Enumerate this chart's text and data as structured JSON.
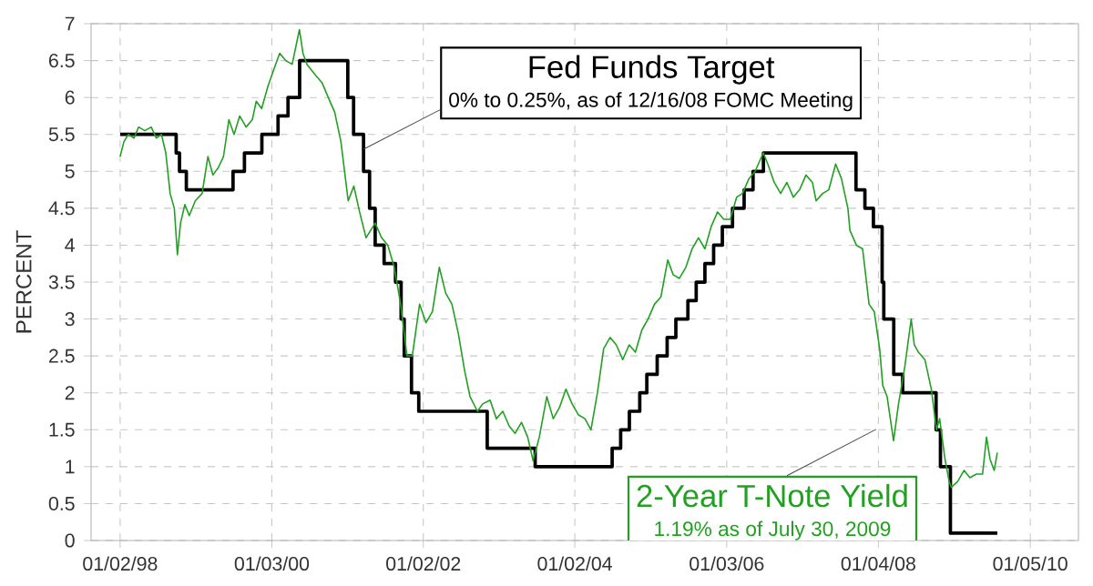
{
  "chart_data": {
    "type": "line",
    "ylabel": "PERCENT",
    "grid": true,
    "legend": false,
    "xlim": [
      "1997-08-15",
      "2010-08-25"
    ],
    "xticks": [
      {
        "value": "1998-01-02",
        "label": "01/02/98"
      },
      {
        "value": "2000-01-03",
        "label": "01/03/00"
      },
      {
        "value": "2002-01-02",
        "label": "01/02/02"
      },
      {
        "value": "2004-01-02",
        "label": "01/02/04"
      },
      {
        "value": "2006-01-03",
        "label": "01/03/06"
      },
      {
        "value": "2008-01-04",
        "label": "01/04/08"
      },
      {
        "value": "2010-01-05",
        "label": "01/05/10"
      }
    ],
    "ylim": [
      0,
      7
    ],
    "yticks": [
      0,
      0.5,
      1,
      1.5,
      2,
      2.5,
      3,
      3.5,
      4,
      4.5,
      5,
      5.5,
      6,
      6.5,
      7
    ],
    "annotations": [
      {
        "text": "0% to 0.25%, as of 12/16/08 FOMC Meeting",
        "x": "2001-03-20",
        "y": 5.3
      },
      "1.19% as of July 30, 2009"
    ],
    "series": [
      {
        "name": "Fed Funds Target",
        "type": "step",
        "color": "#000000",
        "x": [
          "1998-01-02",
          "1998-09-29",
          "1998-10-15",
          "1998-11-17",
          "1999-06-30",
          "1999-08-24",
          "1999-11-16",
          "2000-02-02",
          "2000-03-21",
          "2000-05-16",
          "2001-01-03",
          "2001-01-31",
          "2001-03-20",
          "2001-04-18",
          "2001-05-15",
          "2001-06-27",
          "2001-08-21",
          "2001-09-17",
          "2001-10-02",
          "2001-11-06",
          "2001-12-11",
          "2002-11-06",
          "2003-06-25",
          "2004-06-30",
          "2004-08-10",
          "2004-09-21",
          "2004-11-10",
          "2004-12-14",
          "2005-02-02",
          "2005-03-22",
          "2005-05-03",
          "2005-06-30",
          "2005-08-09",
          "2005-09-20",
          "2005-11-01",
          "2005-12-13",
          "2006-01-31",
          "2006-03-28",
          "2006-05-10",
          "2006-06-29",
          "2007-09-18",
          "2007-10-31",
          "2007-12-11",
          "2008-01-22",
          "2008-01-30",
          "2008-03-18",
          "2008-04-30",
          "2008-10-08",
          "2008-10-29",
          "2008-12-16",
          "2009-07-30"
        ],
        "values": [
          5.5,
          5.25,
          5,
          4.75,
          5,
          5.25,
          5.5,
          5.75,
          6,
          6.5,
          6,
          5.5,
          5,
          4.5,
          4,
          3.75,
          3.5,
          3,
          2.5,
          2,
          1.75,
          1.25,
          1,
          1.25,
          1.5,
          1.75,
          2,
          2.25,
          2.5,
          2.75,
          3,
          3.25,
          3.5,
          3.75,
          4,
          4.25,
          4.5,
          4.75,
          5,
          5.25,
          4.75,
          4.5,
          4.25,
          3.5,
          3,
          2.25,
          2,
          1.5,
          1,
          0.1,
          0.1
        ]
      },
      {
        "name": "2-Year T-Note Yield",
        "type": "line",
        "color": "#22a022",
        "x": [
          "1998-01-02",
          "1998-01-20",
          "1998-02-10",
          "1998-03-10",
          "1998-04-01",
          "1998-05-01",
          "1998-06-01",
          "1998-06-25",
          "1998-07-20",
          "1998-08-10",
          "1998-08-31",
          "1998-09-20",
          "1998-10-05",
          "1998-10-20",
          "1998-11-10",
          "1998-12-01",
          "1998-12-30",
          "1999-02-01",
          "1999-03-01",
          "1999-03-25",
          "1999-04-20",
          "1999-05-15",
          "1999-06-10",
          "1999-07-05",
          "1999-08-01",
          "1999-09-01",
          "1999-10-01",
          "1999-10-20",
          "1999-11-15",
          "1999-12-15",
          "2000-01-15",
          "2000-02-10",
          "2000-03-10",
          "2000-04-10",
          "2000-05-15",
          "2000-06-01",
          "2000-06-20",
          "2000-08-01",
          "2000-09-01",
          "2000-10-01",
          "2000-11-01",
          "2000-12-01",
          "2001-01-05",
          "2001-02-01",
          "2001-03-01",
          "2001-04-01",
          "2001-05-15",
          "2001-06-15",
          "2001-07-15",
          "2001-08-15",
          "2001-09-15",
          "2001-10-15",
          "2001-11-10",
          "2001-12-15",
          "2002-01-15",
          "2002-02-15",
          "2002-03-20",
          "2002-04-20",
          "2002-05-20",
          "2002-06-20",
          "2002-07-20",
          "2002-08-15",
          "2002-09-20",
          "2002-10-15",
          "2002-11-20",
          "2002-12-20",
          "2003-01-20",
          "2003-02-20",
          "2003-03-20",
          "2003-04-20",
          "2003-05-20",
          "2003-06-15",
          "2003-07-15",
          "2003-08-20",
          "2003-09-20",
          "2003-10-20",
          "2003-11-20",
          "2003-12-20",
          "2004-01-20",
          "2004-02-20",
          "2004-03-20",
          "2004-04-20",
          "2004-05-20",
          "2004-06-20",
          "2004-07-20",
          "2004-08-20",
          "2004-09-20",
          "2004-10-20",
          "2004-11-20",
          "2004-12-20",
          "2005-01-20",
          "2005-02-20",
          "2005-03-25",
          "2005-04-20",
          "2005-05-20",
          "2005-06-20",
          "2005-07-20",
          "2005-08-20",
          "2005-09-20",
          "2005-10-20",
          "2005-11-20",
          "2005-12-20",
          "2006-01-20",
          "2006-02-20",
          "2006-03-20",
          "2006-04-20",
          "2006-05-20",
          "2006-06-28",
          "2006-07-20",
          "2006-08-20",
          "2006-09-20",
          "2006-10-20",
          "2006-11-20",
          "2006-12-20",
          "2007-01-20",
          "2007-02-20",
          "2007-03-10",
          "2007-04-10",
          "2007-05-10",
          "2007-06-12",
          "2007-07-10",
          "2007-08-10",
          "2007-08-20",
          "2007-09-20",
          "2007-10-20",
          "2007-11-20",
          "2007-12-15",
          "2008-01-10",
          "2008-01-25",
          "2008-02-15",
          "2008-03-17",
          "2008-04-10",
          "2008-05-10",
          "2008-06-10",
          "2008-06-25",
          "2008-07-15",
          "2008-08-15",
          "2008-09-15",
          "2008-10-10",
          "2008-10-25",
          "2008-11-20",
          "2008-12-10",
          "2008-12-20",
          "2009-01-20",
          "2009-02-20",
          "2009-03-20",
          "2009-04-20",
          "2009-05-20",
          "2009-06-08",
          "2009-06-25",
          "2009-07-15",
          "2009-07-30"
        ],
        "values": [
          5.2,
          5.4,
          5.5,
          5.45,
          5.6,
          5.55,
          5.6,
          5.45,
          5.5,
          5.25,
          4.7,
          4.5,
          3.87,
          4.3,
          4.55,
          4.4,
          4.6,
          4.7,
          5.2,
          4.95,
          5.05,
          5.2,
          5.7,
          5.5,
          5.75,
          5.6,
          5.7,
          5.95,
          5.85,
          6.15,
          6.4,
          6.6,
          6.5,
          6.45,
          6.92,
          6.6,
          6.45,
          6.3,
          6.2,
          6,
          5.8,
          5.4,
          4.6,
          4.8,
          4.45,
          4.1,
          4.3,
          4.1,
          4,
          3.7,
          3.2,
          2.5,
          2.5,
          3.2,
          2.95,
          3.1,
          3.7,
          3.35,
          3.2,
          2.8,
          2.3,
          1.95,
          1.75,
          1.85,
          1.9,
          1.65,
          1.75,
          1.55,
          1.45,
          1.6,
          1.4,
          1.08,
          1.4,
          1.95,
          1.65,
          1.8,
          2.05,
          1.85,
          1.7,
          1.65,
          1.5,
          2,
          2.6,
          2.75,
          2.65,
          2.45,
          2.65,
          2.55,
          2.85,
          3,
          3.2,
          3.3,
          3.8,
          3.6,
          3.55,
          3.7,
          3.95,
          4.1,
          3.95,
          4.25,
          4.45,
          4.35,
          4.35,
          4.65,
          4.7,
          4.9,
          5,
          5.25,
          5.1,
          4.85,
          4.7,
          4.85,
          4.65,
          4.75,
          4.95,
          4.85,
          4.6,
          4.7,
          4.75,
          5.1,
          4.9,
          4.5,
          4.2,
          4,
          3.95,
          3.2,
          3.1,
          2.6,
          2.1,
          1.95,
          1.35,
          1.85,
          2.35,
          3,
          2.65,
          2.55,
          2.45,
          2.05,
          1.5,
          1.65,
          1.1,
          0.8,
          0.72,
          0.8,
          0.95,
          0.85,
          0.9,
          0.9,
          1.4,
          1.1,
          0.95,
          1.19
        ]
      }
    ]
  }
}
